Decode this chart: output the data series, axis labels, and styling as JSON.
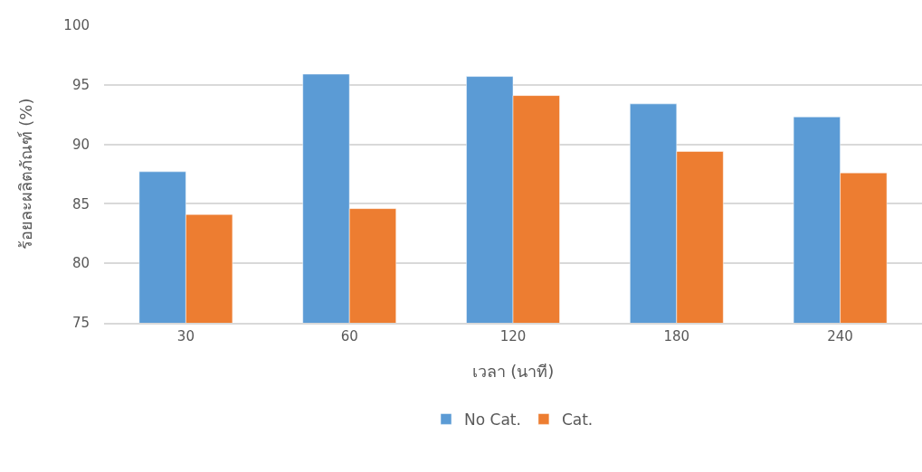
{
  "chart_data": {
    "type": "bar",
    "xlabel": "เวลา (นาที)",
    "ylabel": "ร้อยละผลิตภัณฑ์ (%)",
    "categories": [
      "30",
      "60",
      "120",
      "180",
      "240"
    ],
    "series": [
      {
        "name": "No Cat.",
        "color": "#5b9bd5",
        "values": [
          87.7,
          95.9,
          95.7,
          93.4,
          92.3
        ]
      },
      {
        "name": "Cat.",
        "color": "#ed7d31",
        "values": [
          84.1,
          84.6,
          94.1,
          89.4,
          87.6
        ]
      }
    ],
    "ylim": [
      75,
      100
    ],
    "yticks": [
      75,
      80,
      85,
      90,
      95,
      100
    ],
    "grid": "y",
    "legend": "bottom"
  }
}
